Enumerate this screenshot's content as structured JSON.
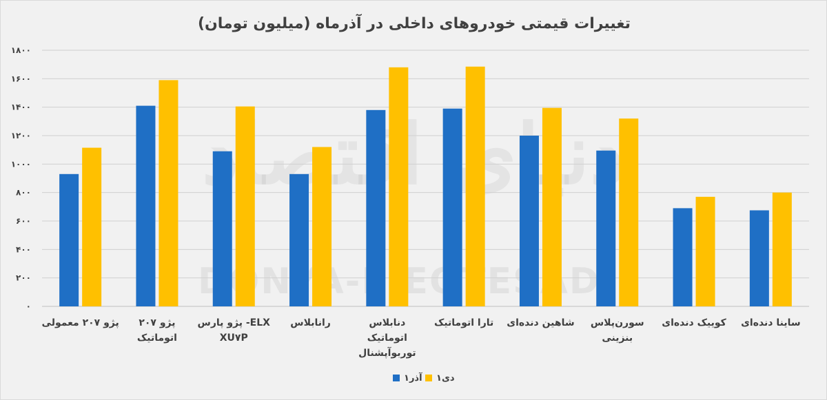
{
  "chart_data": {
    "type": "bar",
    "title": "تغییرات قیمتی خودروهای داخلی در آذرماه (میلیون تومان)",
    "categories": [
      [
        "پژو ۲۰۷ معمولی"
      ],
      [
        "پژو ۲۰۷",
        "اتوماتیک"
      ],
      [
        "ELX- پژو پارس",
        "XU۷P"
      ],
      [
        "رانابلاس"
      ],
      [
        "دنابلاس",
        "اتوماتیک",
        "توربوآپشنال"
      ],
      [
        "تارا اتوماتیک"
      ],
      [
        "شاهین دنده‌ای"
      ],
      [
        "سورن‌پلاس",
        "بنزینی"
      ],
      [
        "کوییک دنده‌ای"
      ],
      [
        "ساینا دنده‌ای"
      ]
    ],
    "series": [
      {
        "name": "۱آذر",
        "color": "#1f6fc5",
        "values": [
          930,
          1410,
          1090,
          930,
          1380,
          1390,
          1200,
          1095,
          690,
          675
        ]
      },
      {
        "name": "۱دی",
        "color": "#ffc000",
        "values": [
          1115,
          1590,
          1405,
          1120,
          1680,
          1685,
          1395,
          1320,
          770,
          800
        ]
      }
    ],
    "ylim": [
      0,
      1800
    ],
    "yticks": [
      0,
      200,
      400,
      600,
      800,
      1000,
      1200,
      1400,
      1600,
      1800
    ],
    "ytick_labels": [
      "۰",
      "۲۰۰",
      "۴۰۰",
      "۶۰۰",
      "۸۰۰",
      "۱۰۰۰",
      "۱۲۰۰",
      "۱۴۰۰",
      "۱۶۰۰",
      "۱۸۰۰"
    ],
    "xlabel": "",
    "ylabel": "",
    "legend_position": "bottom-center",
    "gridlines": true
  },
  "watermark": {
    "latin": "DONYA-E-EQTESAD",
    "persian": "دنیای اقتصاد"
  }
}
